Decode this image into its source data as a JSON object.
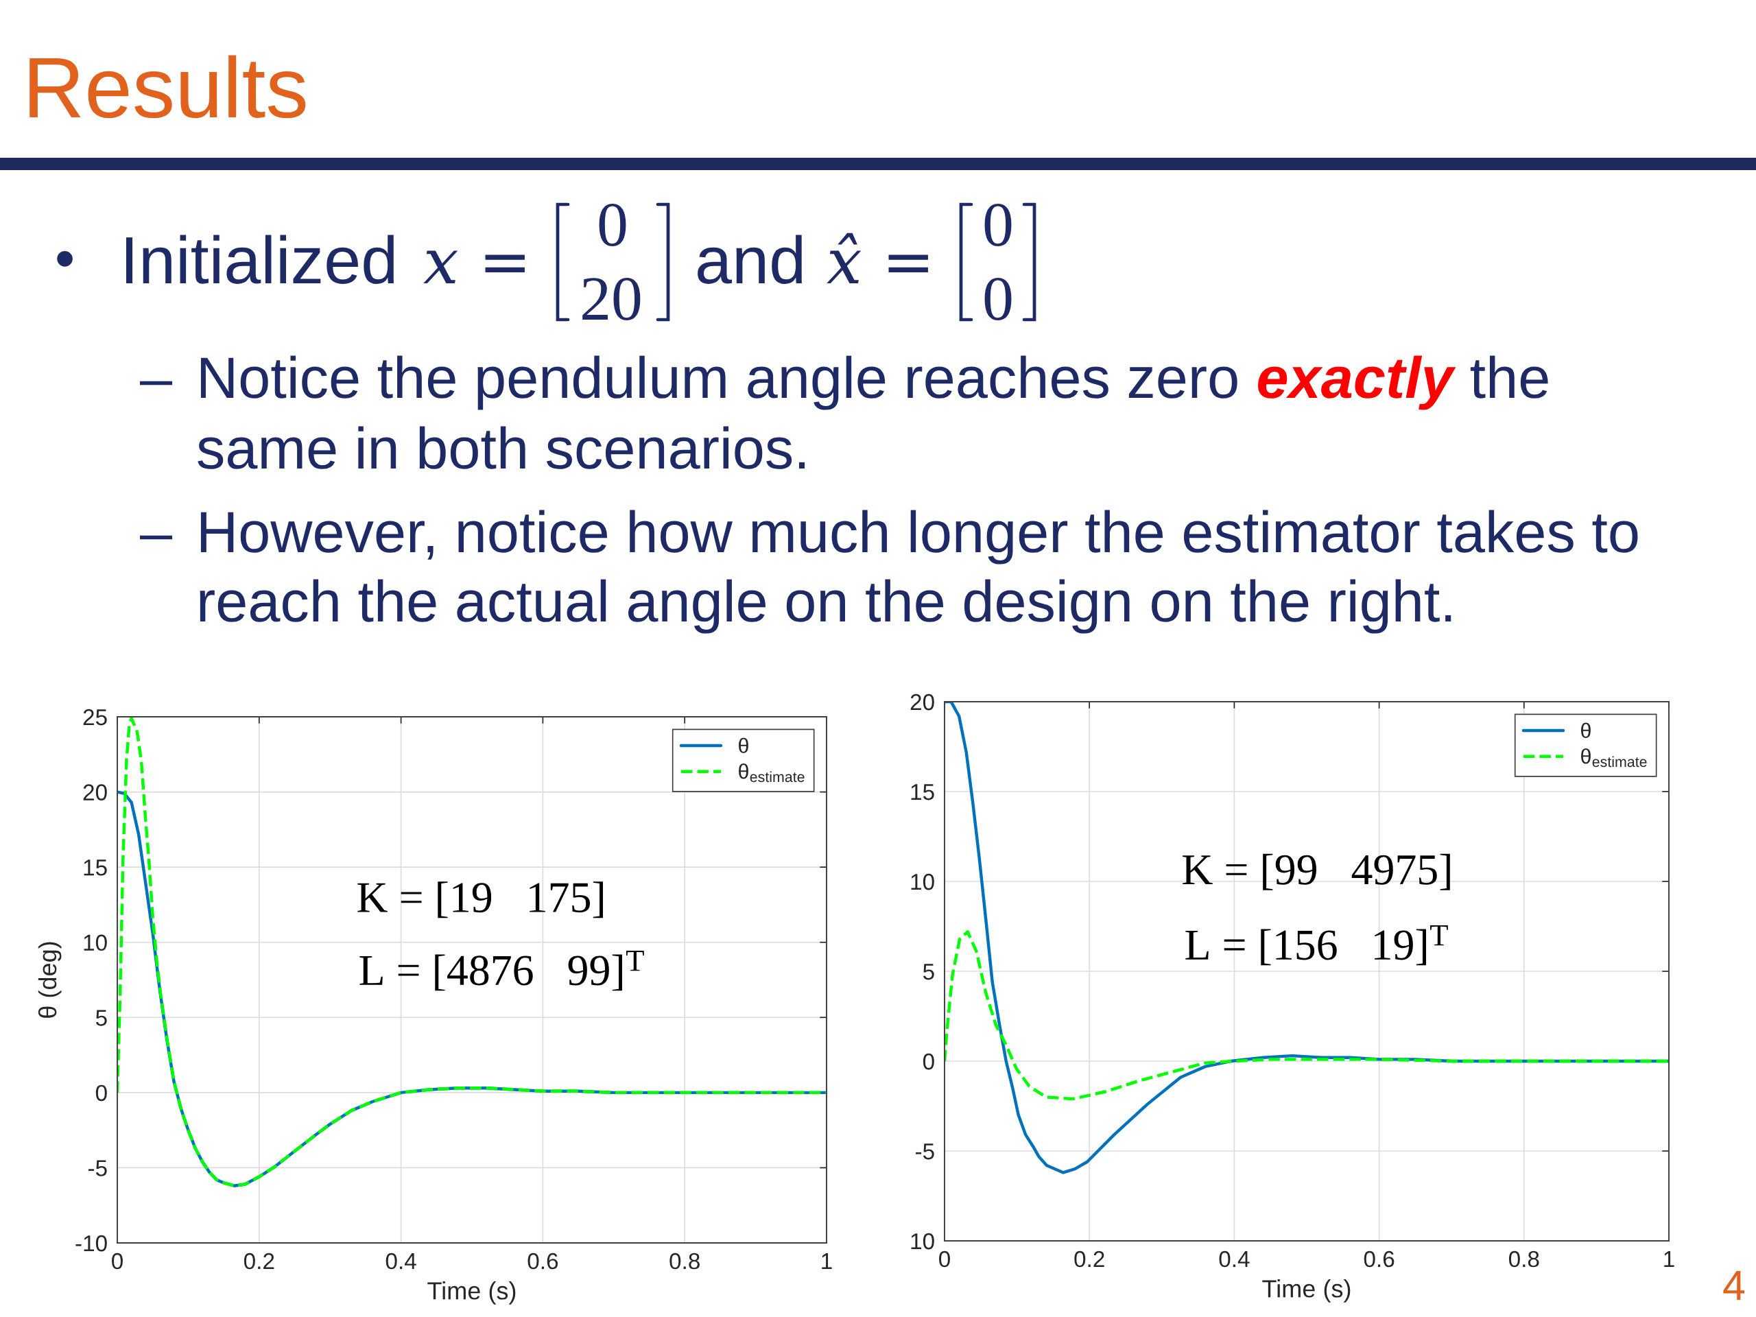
{
  "chart_data": [
    {
      "type": "other",
      "title": "Results",
      "annotations": [
        "•",
        "Initialized",
        "x =",
        "0",
        "20",
        "and",
        "x̂ =",
        "0",
        "0",
        "–",
        "Notice the pendulum angle reaches zero",
        "exactly",
        "the",
        "same in both scenarios.",
        "–",
        "However, notice how much longer the estimator takes to",
        "reach the actual angle on the design on the right.",
        "4"
      ]
    },
    {
      "type": "line",
      "xlabel": "Time (s)",
      "ylabel": "θ (deg)",
      "xlim": [
        0,
        1
      ],
      "ylim": [
        -10,
        25
      ],
      "xticks": [
        0,
        0.2,
        0.4,
        0.6,
        0.8,
        1
      ],
      "yticks": [
        -10,
        -5,
        0,
        5,
        10,
        15,
        20,
        25
      ],
      "grid": true,
      "legend": "top right",
      "annotations": [
        "K = [19   175]",
        "L = [4876   99]$^{T}$"
      ],
      "series": [
        {
          "name": "θ",
          "color": "#0072bd",
          "line_style": "solid",
          "x": [
            0,
            0.01,
            0.02,
            0.03,
            0.04,
            0.05,
            0.06,
            0.07,
            0.08,
            0.09,
            0.1,
            0.11,
            0.12,
            0.13,
            0.14,
            0.15,
            0.165,
            0.18,
            0.2,
            0.22,
            0.25,
            0.28,
            0.3,
            0.33,
            0.36,
            0.4,
            0.44,
            0.48,
            0.52,
            0.56,
            0.6,
            0.65,
            0.7,
            0.8,
            0.9,
            1
          ],
          "values": [
            20,
            19.9,
            19.3,
            17.2,
            13.9,
            10.6,
            6.8,
            3.5,
            0.7,
            -1.1,
            -2.5,
            -3.7,
            -4.6,
            -5.3,
            -5.8,
            -6.0,
            -6.2,
            -6.1,
            -5.6,
            -5.0,
            -3.9,
            -2.8,
            -2.1,
            -1.2,
            -0.6,
            0.0,
            0.2,
            0.3,
            0.3,
            0.2,
            0.1,
            0.1,
            0.0,
            0,
            0,
            0
          ]
        },
        {
          "name": "θ$_{estimate}$",
          "color": "#00ff00",
          "line_style": "dashed",
          "x": [
            0,
            0.004,
            0.008,
            0.013,
            0.017,
            0.02,
            0.028,
            0.034,
            0.039,
            0.045,
            0.05,
            0.056,
            0.061,
            0.07,
            0.08,
            0.09,
            0.1,
            0.11,
            0.12,
            0.13,
            0.14,
            0.15,
            0.165,
            0.18,
            0.2,
            0.22,
            0.25,
            0.28,
            0.3,
            0.33,
            0.36,
            0.4,
            0.44,
            0.48,
            0.52,
            0.56,
            0.6,
            0.65,
            0.7,
            0.8,
            0.9,
            1
          ],
          "values": [
            0,
            6.5,
            15.5,
            22.1,
            24.5,
            24.9,
            24.0,
            22.0,
            18.7,
            15.2,
            11.7,
            8.6,
            6.6,
            3.6,
            0.7,
            -1.1,
            -2.5,
            -3.7,
            -4.6,
            -5.3,
            -5.8,
            -6.0,
            -6.2,
            -6.1,
            -5.6,
            -5.0,
            -3.9,
            -2.8,
            -2.1,
            -1.2,
            -0.6,
            0.0,
            0.2,
            0.3,
            0.3,
            0.2,
            0.1,
            0.1,
            0.0,
            0,
            0,
            0
          ]
        }
      ]
    },
    {
      "type": "line",
      "xlabel": "Time (s)",
      "xlim": [
        0,
        1
      ],
      "ylim": [
        -10,
        20
      ],
      "xticks": [
        0,
        0.2,
        0.4,
        0.6,
        0.8,
        1
      ],
      "yticks": [
        {
          "value": -10,
          "label": "10"
        },
        -5,
        0,
        5,
        10,
        15,
        20
      ],
      "grid": true,
      "legend": "top right",
      "annotations": [
        "K = [99   4975]",
        "L = [156   19]$^{T}$"
      ],
      "series": [
        {
          "name": "θ",
          "color": "#0072bd",
          "line_style": "solid",
          "x": [
            0,
            0.009,
            0.02,
            0.03,
            0.039,
            0.048,
            0.057,
            0.066,
            0.076,
            0.085,
            0.094,
            0.102,
            0.112,
            0.123,
            0.13,
            0.141,
            0.164,
            0.18,
            0.197,
            0.234,
            0.28,
            0.326,
            0.36,
            0.395,
            0.44,
            0.48,
            0.52,
            0.56,
            0.6,
            0.65,
            0.7,
            0.8,
            0.9,
            1
          ],
          "values": [
            20,
            20,
            19.2,
            17.2,
            14.4,
            11.3,
            7.9,
            4.4,
            2.0,
            0,
            -1.5,
            -3.0,
            -4.1,
            -4.8,
            -5.3,
            -5.8,
            -6.2,
            -6.0,
            -5.6,
            -4.1,
            -2.4,
            -0.9,
            -0.3,
            0,
            0.2,
            0.3,
            0.2,
            0.2,
            0.1,
            0.1,
            0.0,
            0,
            0,
            0
          ]
        },
        {
          "name": "θ$_{estimate}$",
          "color": "#00ff00",
          "line_style": "dashed",
          "x": [
            0,
            0.004,
            0.011,
            0.021,
            0.032,
            0.044,
            0.057,
            0.071,
            0.085,
            0.099,
            0.117,
            0.14,
            0.177,
            0.222,
            0.268,
            0.314,
            0.36,
            0.4,
            0.45,
            0.5,
            0.55,
            0.6,
            0.7,
            0.8,
            0.9,
            1
          ],
          "values": [
            0,
            2.0,
            4.8,
            6.8,
            7.2,
            6.1,
            3.8,
            2.0,
            0.9,
            -0.4,
            -1.4,
            -2.0,
            -2.1,
            -1.7,
            -1.1,
            -0.6,
            -0.1,
            0.0,
            0.1,
            0.1,
            0.1,
            0.1,
            0.0,
            0,
            0,
            0
          ]
        }
      ]
    }
  ]
}
